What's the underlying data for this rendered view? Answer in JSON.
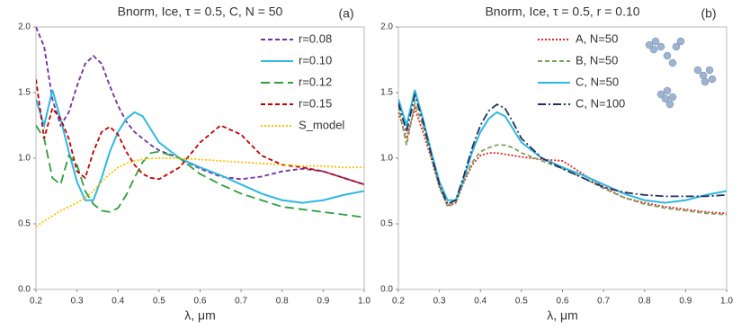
{
  "chart_data": [
    {
      "type": "line",
      "title": "Bnorm, Ice, τ = 0.5, C, N = 50",
      "panel_label": "(a)",
      "x_label": "λ, μm",
      "xlim": [
        0.2,
        1
      ],
      "ylim": [
        0,
        2
      ],
      "xticks": [
        0.2,
        0.3,
        0.4,
        0.5,
        0.6,
        0.7,
        0.8,
        0.9,
        {
          "value": 1,
          "label": "1.0"
        }
      ],
      "yticks": [
        {
          "value": 0,
          "label": "0.0"
        },
        0.5,
        {
          "value": 1,
          "label": "1.0"
        },
        1.5,
        {
          "value": 2,
          "label": "2.0"
        }
      ],
      "legend": "upper right",
      "x": [
        0.2,
        0.22,
        0.24,
        0.26,
        0.28,
        0.3,
        0.32,
        0.34,
        0.36,
        0.38,
        0.4,
        0.42,
        0.44,
        0.46,
        0.48,
        0.5,
        0.55,
        0.6,
        0.65,
        0.7,
        0.75,
        0.8,
        0.85,
        0.9,
        0.95,
        1
      ],
      "series": [
        {
          "name": "r=0.08",
          "color": "#7030a0",
          "dash": "dashed",
          "values": [
            2.0,
            1.85,
            1.45,
            1.25,
            1.35,
            1.55,
            1.72,
            1.78,
            1.72,
            1.55,
            1.4,
            1.28,
            1.2,
            1.15,
            1.1,
            1.06,
            1.0,
            0.92,
            0.86,
            0.84,
            0.86,
            0.9,
            0.92,
            0.9,
            0.85,
            0.8
          ]
        },
        {
          "name": "r=0.10",
          "color": "#2fb8e0",
          "dash": "solid",
          "values": [
            1.45,
            1.25,
            1.52,
            1.3,
            1.05,
            0.82,
            0.68,
            0.68,
            0.85,
            1.05,
            1.2,
            1.3,
            1.35,
            1.32,
            1.22,
            1.12,
            1.0,
            0.93,
            0.87,
            0.8,
            0.73,
            0.68,
            0.66,
            0.68,
            0.72,
            0.75
          ]
        },
        {
          "name": "r=0.12",
          "color": "#2e9e3e",
          "dash": "longdash",
          "values": [
            1.25,
            1.15,
            0.85,
            0.8,
            1.02,
            0.95,
            0.75,
            0.65,
            0.6,
            0.59,
            0.62,
            0.72,
            0.85,
            0.97,
            1.04,
            1.05,
            1.0,
            0.88,
            0.8,
            0.73,
            0.68,
            0.63,
            0.61,
            0.59,
            0.57,
            0.55
          ]
        },
        {
          "name": "r=0.15",
          "color": "#c00000",
          "dash": "dashed",
          "values": [
            1.6,
            1.15,
            1.38,
            1.3,
            1.15,
            0.9,
            0.85,
            1.05,
            1.2,
            1.24,
            1.18,
            1.05,
            0.95,
            0.88,
            0.85,
            0.84,
            0.93,
            1.12,
            1.25,
            1.18,
            1.02,
            0.95,
            0.93,
            0.9,
            0.85,
            0.8
          ]
        },
        {
          "name": "S_model",
          "color": "#ffc000",
          "dash": "dotted",
          "values": [
            0.48,
            0.52,
            0.56,
            0.6,
            0.63,
            0.66,
            0.7,
            0.75,
            0.82,
            0.88,
            0.93,
            0.96,
            0.98,
            0.99,
            1.0,
            1.0,
            1.0,
            0.99,
            0.98,
            0.97,
            0.96,
            0.95,
            0.94,
            0.94,
            0.93,
            0.93
          ]
        }
      ]
    },
    {
      "type": "line",
      "title": "Bnorm, Ice, τ = 0.5,  r = 0.10",
      "panel_label": "(b)",
      "x_label": "λ, μm",
      "xlim": [
        0.2,
        1
      ],
      "ylim": [
        0,
        2
      ],
      "xticks": [
        0.2,
        0.3,
        0.4,
        0.5,
        0.6,
        0.7,
        0.8,
        0.9,
        {
          "value": 1,
          "label": "1.0"
        }
      ],
      "yticks": [
        {
          "value": 0,
          "label": "0.0"
        },
        0.5,
        {
          "value": 1,
          "label": "1.0"
        },
        1.5,
        {
          "value": 2,
          "label": "2.0"
        }
      ],
      "legend": "upper center",
      "x": [
        0.2,
        0.22,
        0.24,
        0.26,
        0.28,
        0.3,
        0.32,
        0.34,
        0.36,
        0.38,
        0.4,
        0.42,
        0.44,
        0.46,
        0.48,
        0.5,
        0.55,
        0.6,
        0.65,
        0.7,
        0.75,
        0.8,
        0.85,
        0.9,
        0.95,
        1
      ],
      "series": [
        {
          "name": "A, N=50",
          "color": "#e02020",
          "dash": "dotted",
          "values": [
            1.35,
            1.15,
            1.38,
            1.2,
            1.0,
            0.78,
            0.64,
            0.66,
            0.82,
            0.95,
            1.02,
            1.04,
            1.04,
            1.03,
            1.02,
            1.01,
            0.99,
            0.98,
            0.88,
            0.78,
            0.7,
            0.66,
            0.63,
            0.61,
            0.59,
            0.58
          ]
        },
        {
          "name": "B, N=50",
          "color": "#7f9f5f",
          "dash": "dashed",
          "values": [
            1.4,
            1.1,
            1.42,
            1.25,
            1.02,
            0.78,
            0.63,
            0.66,
            0.83,
            0.97,
            1.05,
            1.08,
            1.1,
            1.1,
            1.08,
            1.04,
            0.98,
            0.92,
            0.85,
            0.77,
            0.7,
            0.65,
            0.62,
            0.6,
            0.58,
            0.57
          ]
        },
        {
          "name": "C, N=50",
          "color": "#2fb8e0",
          "dash": "solid",
          "values": [
            1.45,
            1.25,
            1.52,
            1.3,
            1.05,
            0.82,
            0.68,
            0.68,
            0.85,
            1.05,
            1.2,
            1.3,
            1.35,
            1.32,
            1.22,
            1.12,
            1.0,
            0.93,
            0.87,
            0.8,
            0.73,
            0.68,
            0.66,
            0.68,
            0.72,
            0.75
          ]
        },
        {
          "name": "C, N=100",
          "color": "#1f2f5f",
          "dash": "dashdot",
          "values": [
            1.42,
            1.2,
            1.48,
            1.28,
            1.03,
            0.8,
            0.65,
            0.68,
            0.87,
            1.08,
            1.25,
            1.36,
            1.41,
            1.38,
            1.27,
            1.15,
            1.0,
            0.92,
            0.85,
            0.78,
            0.74,
            0.72,
            0.71,
            0.71,
            0.71,
            0.72
          ]
        }
      ]
    }
  ]
}
